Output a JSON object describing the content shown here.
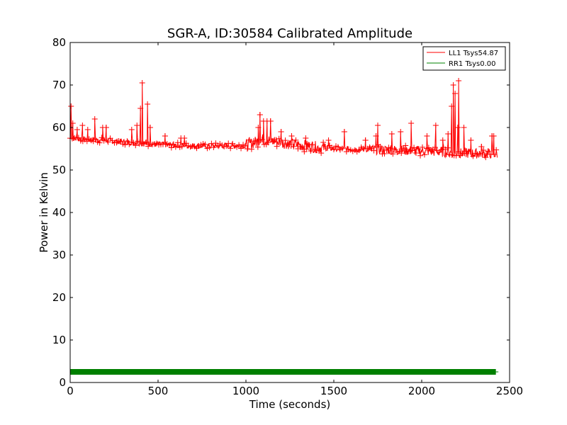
{
  "chart_data": {
    "type": "line",
    "title": "SGR-A, ID:30584 Calibrated Amplitude",
    "xlabel": "Time (seconds)",
    "ylabel": "Power in Kelvin",
    "xlim": [
      0,
      2500
    ],
    "ylim": [
      0,
      80
    ],
    "xticks": [
      "0",
      "500",
      "1000",
      "1500",
      "2000",
      "2500"
    ],
    "yticks": [
      "0",
      "10",
      "20",
      "30",
      "40",
      "50",
      "60",
      "70",
      "80"
    ],
    "grid": false,
    "legend_position": "top-right",
    "series": [
      {
        "name": "LL1 Tsys54.87",
        "color": "#ff0000",
        "marker": "plus",
        "baseline": [
          [
            0,
            57.5
          ],
          [
            250,
            56.8
          ],
          [
            500,
            56.0
          ],
          [
            750,
            55.6
          ],
          [
            1000,
            55.8
          ],
          [
            1100,
            57.2
          ],
          [
            1200,
            56.5
          ],
          [
            1350,
            55.6
          ],
          [
            1500,
            55.0
          ],
          [
            1750,
            54.8
          ],
          [
            2000,
            54.5
          ],
          [
            2200,
            54.0
          ],
          [
            2430,
            53.8
          ]
        ],
        "spikes": [
          [
            5,
            65.0
          ],
          [
            15,
            61.0
          ],
          [
            40,
            59.5
          ],
          [
            70,
            60.5
          ],
          [
            100,
            59.5
          ],
          [
            140,
            62.0
          ],
          [
            185,
            60.0
          ],
          [
            205,
            60.0
          ],
          [
            350,
            59.5
          ],
          [
            380,
            60.5
          ],
          [
            400,
            64.5
          ],
          [
            410,
            70.5
          ],
          [
            440,
            65.5
          ],
          [
            455,
            60.0
          ],
          [
            540,
            58.0
          ],
          [
            630,
            57.5
          ],
          [
            650,
            57.5
          ],
          [
            1070,
            60.0
          ],
          [
            1080,
            63.0
          ],
          [
            1100,
            61.5
          ],
          [
            1120,
            61.5
          ],
          [
            1140,
            61.5
          ],
          [
            1200,
            59.0
          ],
          [
            1260,
            58.0
          ],
          [
            1340,
            57.5
          ],
          [
            1470,
            57.0
          ],
          [
            1560,
            59.0
          ],
          [
            1680,
            57.0
          ],
          [
            1740,
            58.0
          ],
          [
            1750,
            60.5
          ],
          [
            1830,
            58.5
          ],
          [
            1880,
            59.0
          ],
          [
            1940,
            61.0
          ],
          [
            2030,
            58.0
          ],
          [
            2080,
            60.5
          ],
          [
            2120,
            57.0
          ],
          [
            2150,
            58.5
          ],
          [
            2170,
            65.0
          ],
          [
            2180,
            70.0
          ],
          [
            2190,
            68.0
          ],
          [
            2205,
            60.0
          ],
          [
            2210,
            71.0
          ],
          [
            2240,
            60.0
          ],
          [
            2280,
            57.0
          ],
          [
            2340,
            55.5
          ],
          [
            2400,
            58.0
          ],
          [
            2410,
            58.0
          ]
        ]
      },
      {
        "name": "RR1 Tsys0.00",
        "color": "#008000",
        "marker": "plus",
        "constant_value": 2.5,
        "x_range": [
          0,
          2420
        ]
      }
    ]
  }
}
